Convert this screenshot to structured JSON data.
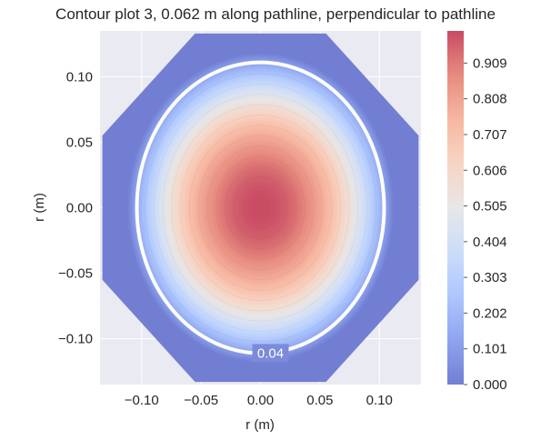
{
  "chart_data": {
    "type": "contour",
    "title": "Contour plot 3, 0.062 m along pathline, perpendicular to pathline",
    "xlabel": "r (m)",
    "ylabel": "r (m)",
    "xlim": [
      -0.135,
      0.135
    ],
    "ylim": [
      -0.135,
      0.135
    ],
    "x_ticks": [
      -0.1,
      -0.05,
      0.0,
      0.05,
      0.1
    ],
    "x_tick_labels": [
      "−0.10",
      "−0.05",
      "0.00",
      "0.05",
      "0.10"
    ],
    "y_ticks": [
      0.1,
      0.05,
      0.0,
      -0.05,
      -0.1
    ],
    "y_tick_labels": [
      "0.10",
      "0.05",
      "0.00",
      "−0.05",
      "−0.10"
    ],
    "grid": true,
    "colormap": "coolwarm",
    "colorbar": {
      "vmin": 0.0,
      "vmax": 1.0,
      "ticks": [
        0.0,
        0.101,
        0.202,
        0.303,
        0.404,
        0.505,
        0.606,
        0.707,
        0.808,
        0.909
      ],
      "tick_labels": [
        "0.000",
        "0.101",
        "0.202",
        "0.303",
        "0.404",
        "0.505",
        "0.606",
        "0.707",
        "0.808",
        "0.909"
      ]
    },
    "field": {
      "domain_radius": 0.133,
      "peak_value": 1.0,
      "zero_value_radius_x": 0.112,
      "zero_value_radius_y": 0.118,
      "center_x": 0.0,
      "center_y": 0.0
    },
    "highlighted_contour": {
      "label": "0.04",
      "radius_x": 0.104,
      "radius_y": 0.111,
      "color": "#ffffff"
    }
  }
}
